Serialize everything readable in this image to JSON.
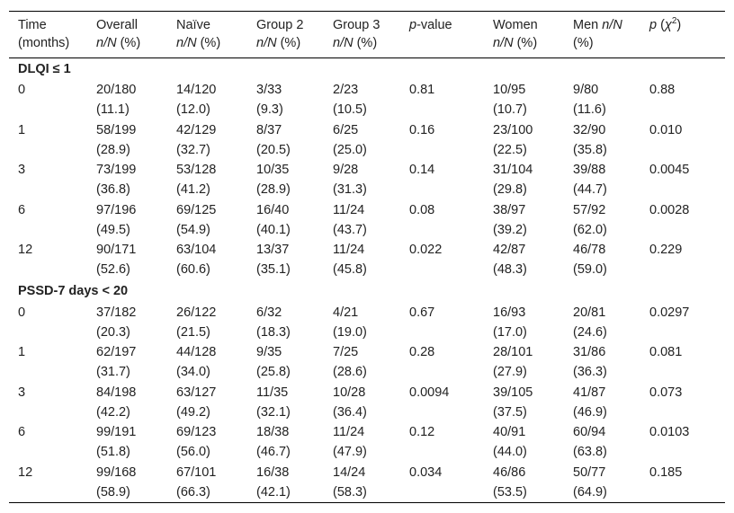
{
  "table": {
    "header": [
      [
        [
          {
            "text": "Time"
          }
        ],
        [
          {
            "text": "(months)"
          }
        ]
      ],
      [
        [
          {
            "text": "Overall"
          }
        ],
        [
          {
            "text": "n/N",
            "style": "italic"
          },
          {
            "text": " (%)"
          }
        ]
      ],
      [
        [
          {
            "text": "Naïve"
          }
        ],
        [
          {
            "text": "n/N",
            "style": "italic"
          },
          {
            "text": " (%)"
          }
        ]
      ],
      [
        [
          {
            "text": "Group 2"
          }
        ],
        [
          {
            "text": "n/N",
            "style": "italic"
          },
          {
            "text": " (%)"
          }
        ]
      ],
      [
        [
          {
            "text": "Group 3"
          }
        ],
        [
          {
            "text": "n/N",
            "style": "italic"
          },
          {
            "text": " (%)"
          }
        ]
      ],
      [
        [
          {
            "text": "p",
            "style": "italic"
          },
          {
            "text": "-value"
          }
        ]
      ],
      [
        [
          {
            "text": "Women"
          }
        ],
        [
          {
            "text": "n/N",
            "style": "italic"
          },
          {
            "text": " (%)"
          }
        ]
      ],
      [
        [
          {
            "text": "Men "
          },
          {
            "text": "n/N",
            "style": "italic"
          }
        ],
        [
          {
            "text": "(%)"
          }
        ]
      ],
      [
        [
          {
            "text": "p",
            "style": "italic"
          },
          {
            "text": " ("
          },
          {
            "text": "χ",
            "style": "italic"
          },
          {
            "text": "2",
            "style": "sup"
          },
          {
            "text": ")"
          }
        ]
      ]
    ],
    "sections": [
      {
        "title": "DLQI ≤ 1",
        "rows": [
          [
            [
              "0"
            ],
            [
              "20/180",
              "(11.1)"
            ],
            [
              "14/120",
              "(12.0)"
            ],
            [
              "3/33",
              "(9.3)"
            ],
            [
              "2/23",
              "(10.5)"
            ],
            [
              "0.81"
            ],
            [
              "10/95",
              "(10.7)"
            ],
            [
              "9/80",
              "(11.6)"
            ],
            [
              "0.88"
            ]
          ],
          [
            [
              "1"
            ],
            [
              "58/199",
              "(28.9)"
            ],
            [
              "42/129",
              "(32.7)"
            ],
            [
              "8/37",
              "(20.5)"
            ],
            [
              "6/25",
              "(25.0)"
            ],
            [
              "0.16"
            ],
            [
              "23/100",
              "(22.5)"
            ],
            [
              "32/90",
              "(35.8)"
            ],
            [
              "0.010"
            ]
          ],
          [
            [
              "3"
            ],
            [
              "73/199",
              "(36.8)"
            ],
            [
              "53/128",
              "(41.2)"
            ],
            [
              "10/35",
              "(28.9)"
            ],
            [
              "9/28",
              "(31.3)"
            ],
            [
              "0.14"
            ],
            [
              "31/104",
              "(29.8)"
            ],
            [
              "39/88",
              "(44.7)"
            ],
            [
              "0.0045"
            ]
          ],
          [
            [
              "6"
            ],
            [
              "97/196",
              "(49.5)"
            ],
            [
              "69/125",
              "(54.9)"
            ],
            [
              "16/40",
              "(40.1)"
            ],
            [
              "11/24",
              "(43.7)"
            ],
            [
              "0.08"
            ],
            [
              "38/97",
              "(39.2)"
            ],
            [
              "57/92",
              "(62.0)"
            ],
            [
              "0.0028"
            ]
          ],
          [
            [
              "12"
            ],
            [
              "90/171",
              "(52.6)"
            ],
            [
              "63/104",
              "(60.6)"
            ],
            [
              "13/37",
              "(35.1)"
            ],
            [
              "11/24",
              "(45.8)"
            ],
            [
              "0.022"
            ],
            [
              "42/87",
              "(48.3)"
            ],
            [
              "46/78",
              "(59.0)"
            ],
            [
              "0.229"
            ]
          ]
        ]
      },
      {
        "title": "PSSD-7 days < 20",
        "rows": [
          [
            [
              "0"
            ],
            [
              "37/182",
              "(20.3)"
            ],
            [
              "26/122",
              "(21.5)"
            ],
            [
              "6/32",
              "(18.3)"
            ],
            [
              "4/21",
              "(19.0)"
            ],
            [
              "0.67"
            ],
            [
              "16/93",
              "(17.0)"
            ],
            [
              "20/81",
              "(24.6)"
            ],
            [
              "0.0297"
            ]
          ],
          [
            [
              "1"
            ],
            [
              "62/197",
              "(31.7)"
            ],
            [
              "44/128",
              "(34.0)"
            ],
            [
              "9/35",
              "(25.8)"
            ],
            [
              "7/25",
              "(28.6)"
            ],
            [
              "0.28"
            ],
            [
              "28/101",
              "(27.9)"
            ],
            [
              "31/86",
              "(36.3)"
            ],
            [
              "0.081"
            ]
          ],
          [
            [
              "3"
            ],
            [
              "84/198",
              "(42.2)"
            ],
            [
              "63/127",
              "(49.2)"
            ],
            [
              "11/35",
              "(32.1)"
            ],
            [
              "10/28",
              "(36.4)"
            ],
            [
              "0.0094"
            ],
            [
              "39/105",
              "(37.5)"
            ],
            [
              "41/87",
              "(46.9)"
            ],
            [
              "0.073"
            ]
          ],
          [
            [
              "6"
            ],
            [
              "99/191",
              "(51.8)"
            ],
            [
              "69/123",
              "(56.0)"
            ],
            [
              "18/38",
              "(46.7)"
            ],
            [
              "11/24",
              "(47.9)"
            ],
            [
              "0.12"
            ],
            [
              "40/91",
              "(44.0)"
            ],
            [
              "60/94",
              "(63.8)"
            ],
            [
              "0.0103"
            ]
          ],
          [
            [
              "12"
            ],
            [
              "99/168",
              "(58.9)"
            ],
            [
              "67/101",
              "(66.3)"
            ],
            [
              "16/38",
              "(42.1)"
            ],
            [
              "14/24",
              "(58.3)"
            ],
            [
              "0.034"
            ],
            [
              "46/86",
              "(53.5)"
            ],
            [
              "50/77",
              "(64.9)"
            ],
            [
              "0.185"
            ]
          ]
        ]
      }
    ]
  }
}
